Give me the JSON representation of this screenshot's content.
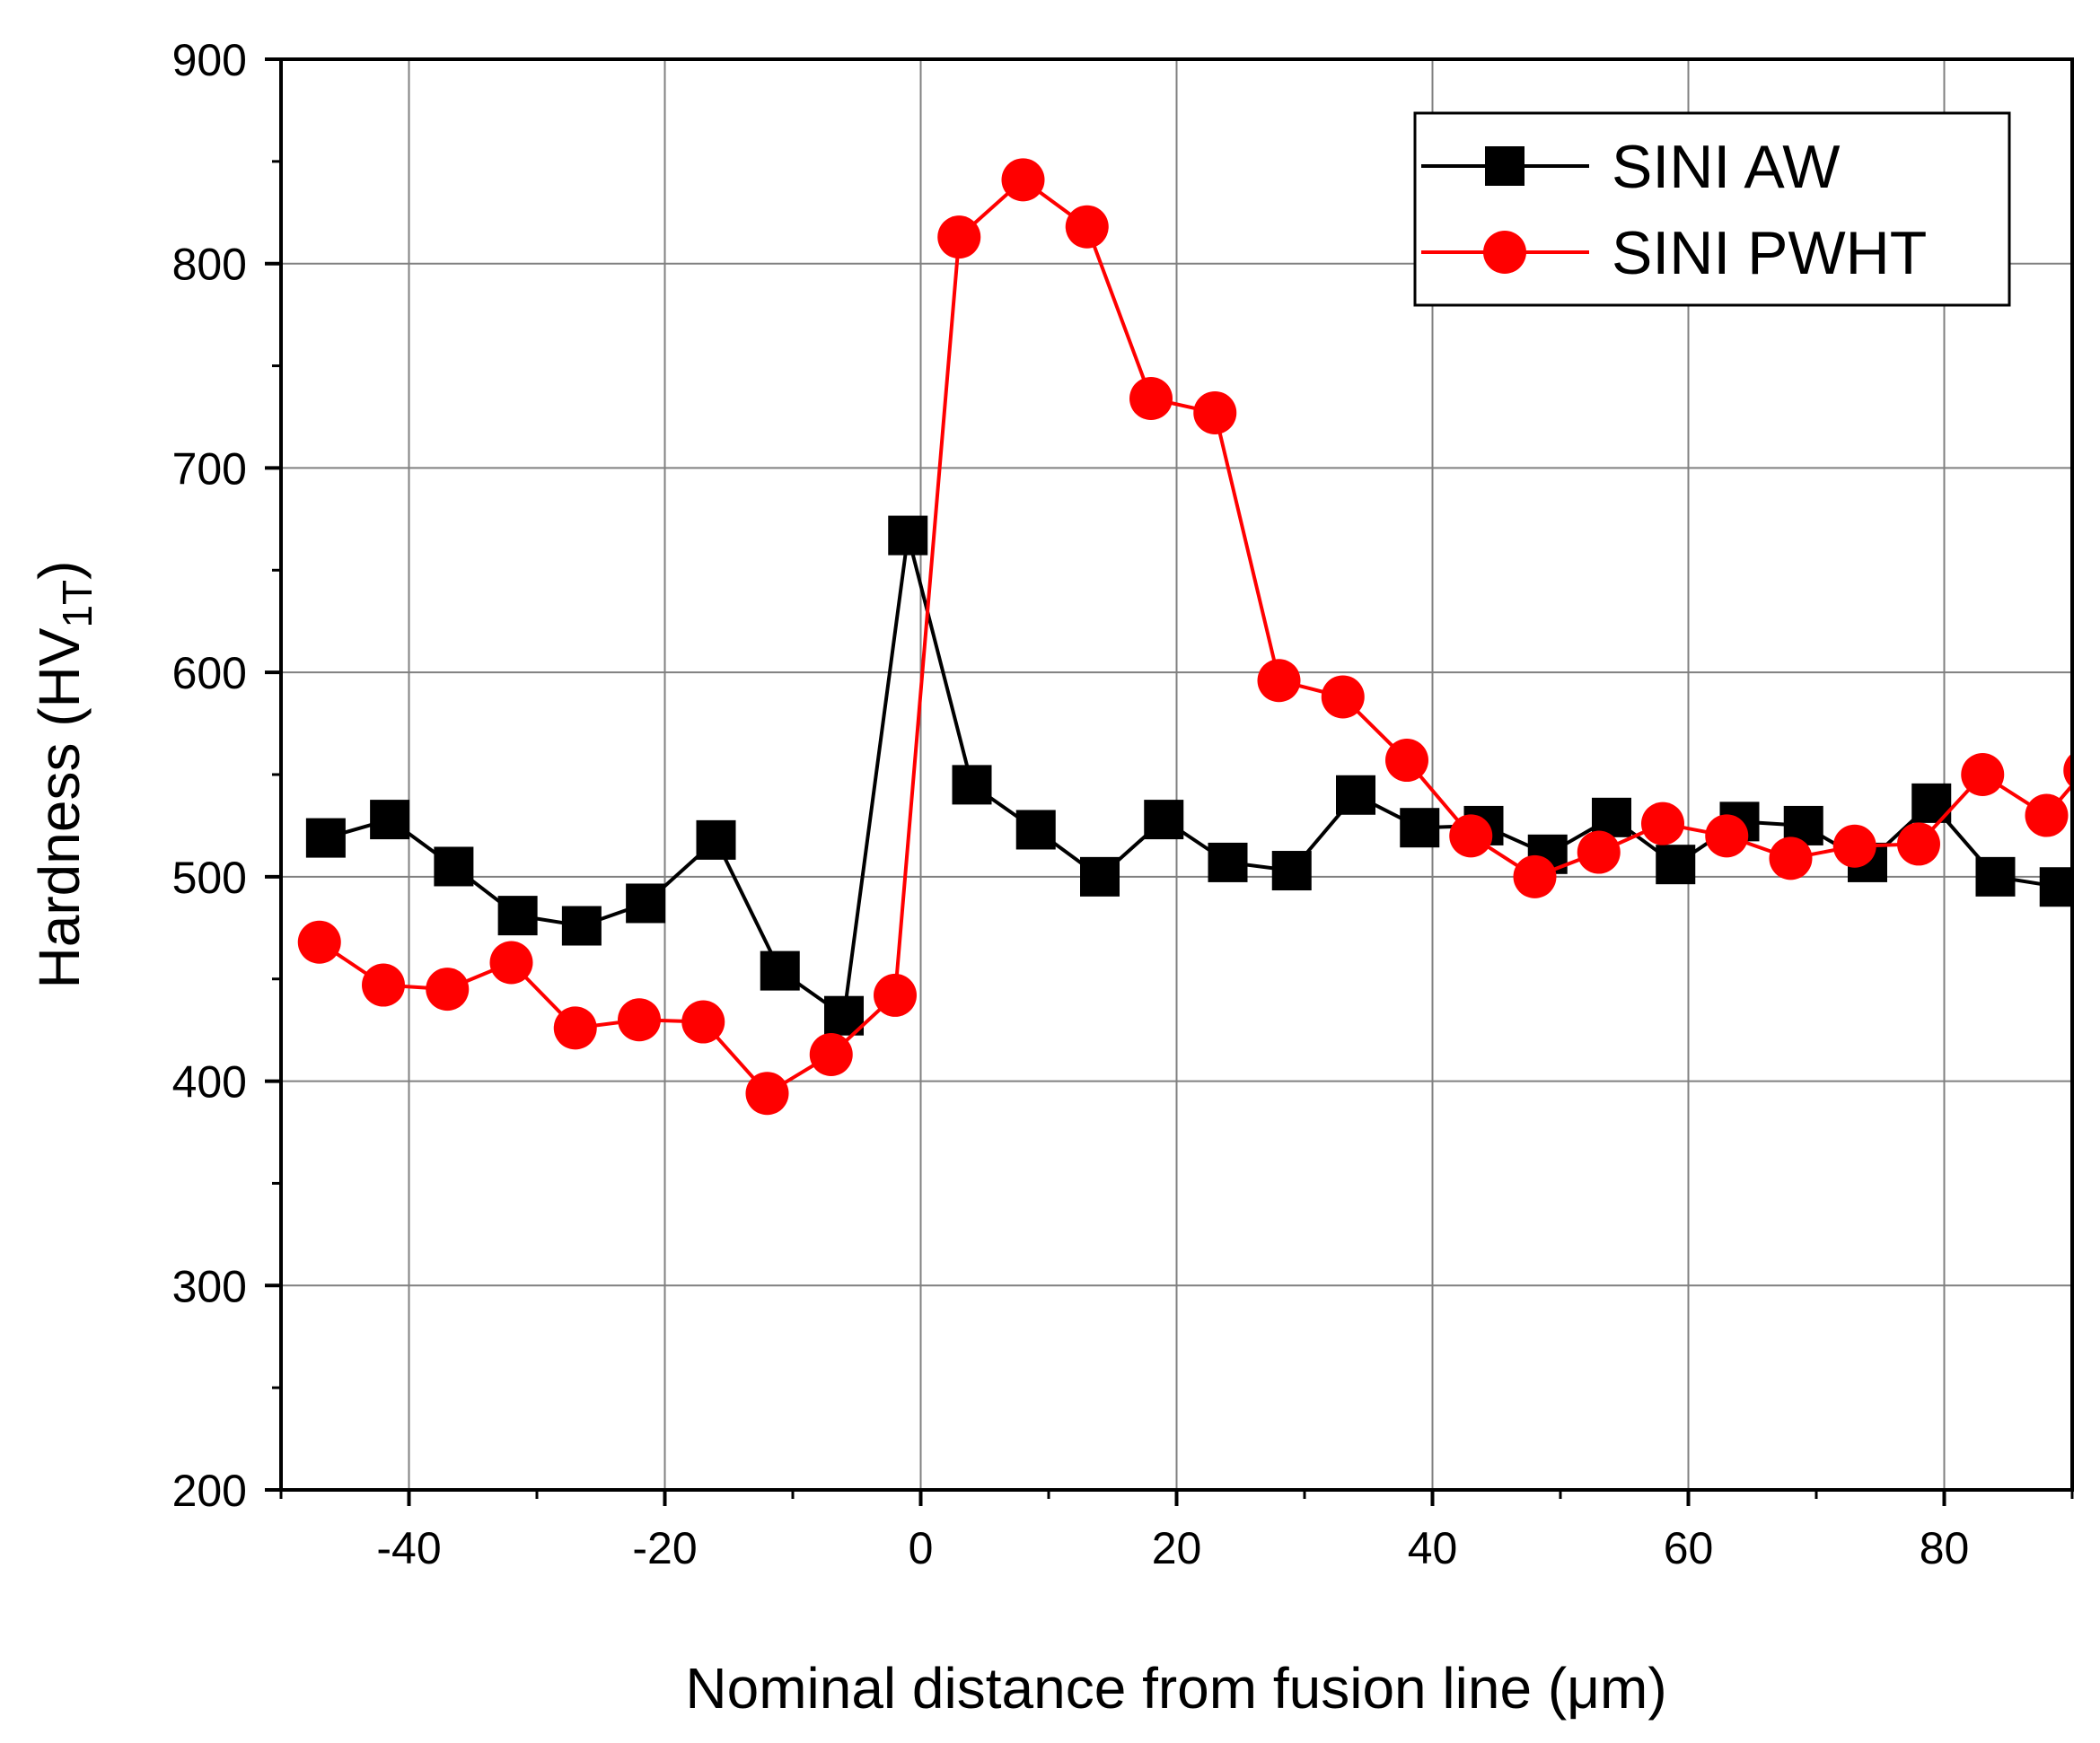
{
  "chart_data": {
    "type": "line",
    "title": "",
    "xlabel": "Nominal distance from fusion line (μm)",
    "ylabel": {
      "main": "Hardness (HV",
      "subscript": "1T",
      "close": ")"
    },
    "xlim": [
      -50,
      90
    ],
    "ylim": [
      200,
      900
    ],
    "x_ticks": [
      -40,
      -20,
      0,
      20,
      40,
      60,
      80
    ],
    "y_ticks": [
      200,
      300,
      400,
      500,
      600,
      700,
      800,
      900
    ],
    "x_tick_labels": [
      "-40",
      "-20",
      "0",
      "20",
      "40",
      "60",
      "80"
    ],
    "y_tick_labels": [
      "200",
      "300",
      "400",
      "500",
      "600",
      "700",
      "800",
      "900"
    ],
    "grid": true,
    "legend_position": "top-right",
    "series": [
      {
        "name": "SINI AW",
        "color": "#000000",
        "marker": "square",
        "x": [
          -46.5,
          -41.5,
          -36.5,
          -31.5,
          -26.5,
          -21.5,
          -16,
          -11,
          -6,
          -1,
          4,
          9,
          14,
          19,
          24,
          29,
          34,
          39,
          44,
          49,
          54,
          59,
          64,
          69,
          74,
          79,
          84,
          89
        ],
        "y": [
          519,
          528,
          505,
          481,
          476,
          487,
          518,
          454,
          432,
          667,
          545,
          523,
          500,
          528,
          507,
          503,
          540,
          524,
          525,
          511,
          529,
          506,
          527,
          525,
          507,
          536,
          500,
          495
        ]
      },
      {
        "name": "SINI PWHT",
        "color": "#ff0000",
        "marker": "circle",
        "x": [
          -47,
          -42,
          -37,
          -32,
          -27,
          -22,
          -17,
          -12,
          -7,
          -2,
          3,
          8,
          13,
          18,
          23,
          28,
          33,
          38,
          43,
          48,
          53,
          58,
          63,
          68,
          73,
          78,
          83,
          88,
          91
        ],
        "y": [
          468,
          447,
          445,
          458,
          426,
          430,
          429,
          394,
          413,
          442,
          813,
          841,
          818,
          734,
          727,
          596,
          588,
          557,
          520,
          500,
          512,
          526,
          520,
          509,
          515,
          516,
          550,
          530,
          552
        ]
      }
    ]
  }
}
